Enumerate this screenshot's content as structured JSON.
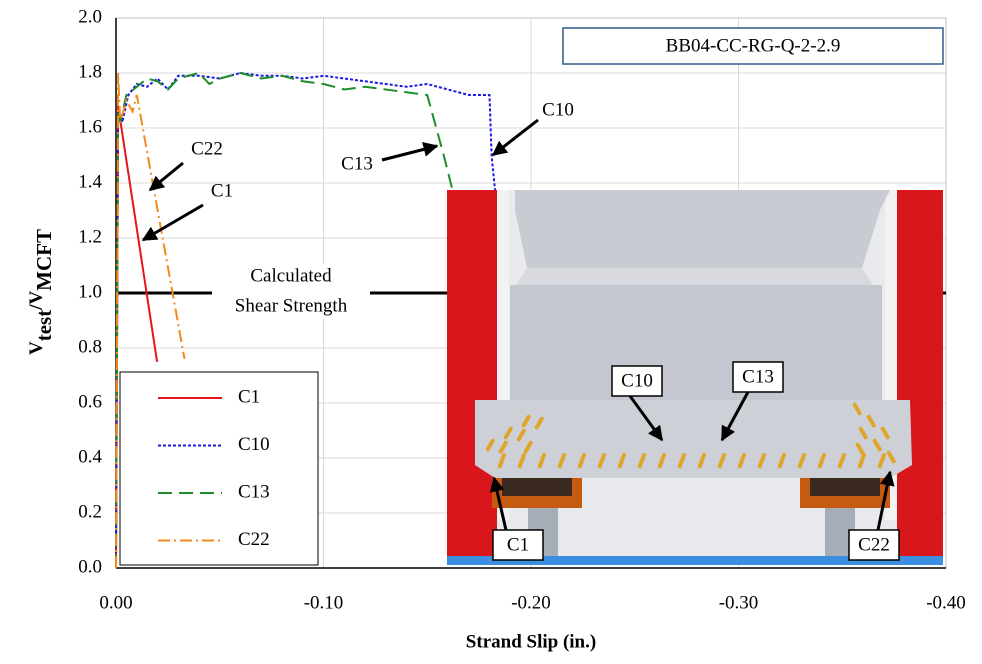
{
  "chart_data": {
    "type": "line",
    "legend_title_box": "BB04-CC-RG-Q-2-2.9",
    "y_label": [
      "V",
      "test",
      "/V",
      "MCFT"
    ],
    "x_label": "Strand Slip (in.)",
    "xlim": [
      0,
      -0.4
    ],
    "ylim": [
      0,
      2.0
    ],
    "xticks": [
      {
        "value": 0,
        "label": "0.00"
      },
      {
        "value": -0.1,
        "label": "-0.10"
      },
      {
        "value": -0.2,
        "label": "-0.20"
      },
      {
        "value": -0.3,
        "label": "-0.30"
      },
      {
        "value": -0.4,
        "label": "-0.40"
      }
    ],
    "yticks": [
      {
        "value": 0,
        "label": "0.0"
      },
      0.2,
      0.4,
      0.6,
      0.8,
      {
        "value": 1,
        "label": "1.0"
      },
      1.2,
      1.4,
      1.6,
      1.8,
      {
        "value": 2,
        "label": "2.0"
      }
    ],
    "grid": true,
    "legend": "lower left",
    "reference_line": {
      "value": 1.0,
      "label": [
        "Calculated",
        "Shear Strength"
      ]
    },
    "series": [
      {
        "name": "C1",
        "color": "#e8141b",
        "style": "solid",
        "x": [
          0,
          -0.001,
          -0.0198
        ],
        "values": [
          0,
          1.68,
          0.75
        ]
      },
      {
        "name": "C10",
        "color": "#1a1ae6",
        "style": "dotted",
        "x": [
          0,
          -0.001,
          -0.003,
          -0.006,
          -0.01,
          -0.015,
          -0.02,
          -0.025,
          -0.03,
          -0.04,
          -0.05,
          -0.06,
          -0.07,
          -0.08,
          -0.09,
          -0.1,
          -0.11,
          -0.12,
          -0.13,
          -0.14,
          -0.15,
          -0.16,
          -0.17,
          -0.18,
          -0.181,
          -0.183
        ],
        "values": [
          0,
          1.66,
          1.62,
          1.72,
          1.76,
          1.75,
          1.78,
          1.74,
          1.79,
          1.79,
          1.78,
          1.8,
          1.79,
          1.79,
          1.78,
          1.79,
          1.78,
          1.77,
          1.76,
          1.75,
          1.76,
          1.74,
          1.72,
          1.72,
          1.5,
          1.35
        ]
      },
      {
        "name": "C13",
        "color": "#1e8c28",
        "style": "dashed",
        "x": [
          0,
          -0.001,
          -0.002,
          -0.005,
          -0.01,
          -0.015,
          -0.02,
          -0.025,
          -0.03,
          -0.04,
          -0.045,
          -0.05,
          -0.06,
          -0.07,
          -0.08,
          -0.09,
          -0.1,
          -0.11,
          -0.12,
          -0.13,
          -0.14,
          -0.15,
          -0.158,
          -0.162
        ],
        "values": [
          0,
          1.66,
          1.62,
          1.72,
          1.75,
          1.78,
          1.77,
          1.74,
          1.78,
          1.8,
          1.76,
          1.78,
          1.8,
          1.78,
          1.79,
          1.77,
          1.76,
          1.74,
          1.75,
          1.74,
          1.73,
          1.72,
          1.5,
          1.38
        ]
      },
      {
        "name": "C22",
        "color": "#f28a1e",
        "style": "dashdot",
        "x": [
          0,
          -0.001,
          -0.002,
          -0.005,
          -0.008,
          -0.01,
          -0.033
        ],
        "values": [
          0,
          1.8,
          1.62,
          1.7,
          1.66,
          1.72,
          0.76
        ]
      }
    ],
    "annotations": [
      "C22",
      "C1",
      "C13",
      "C10"
    ],
    "inset_labels": [
      "C10",
      "C13",
      "C1",
      "C22"
    ]
  }
}
